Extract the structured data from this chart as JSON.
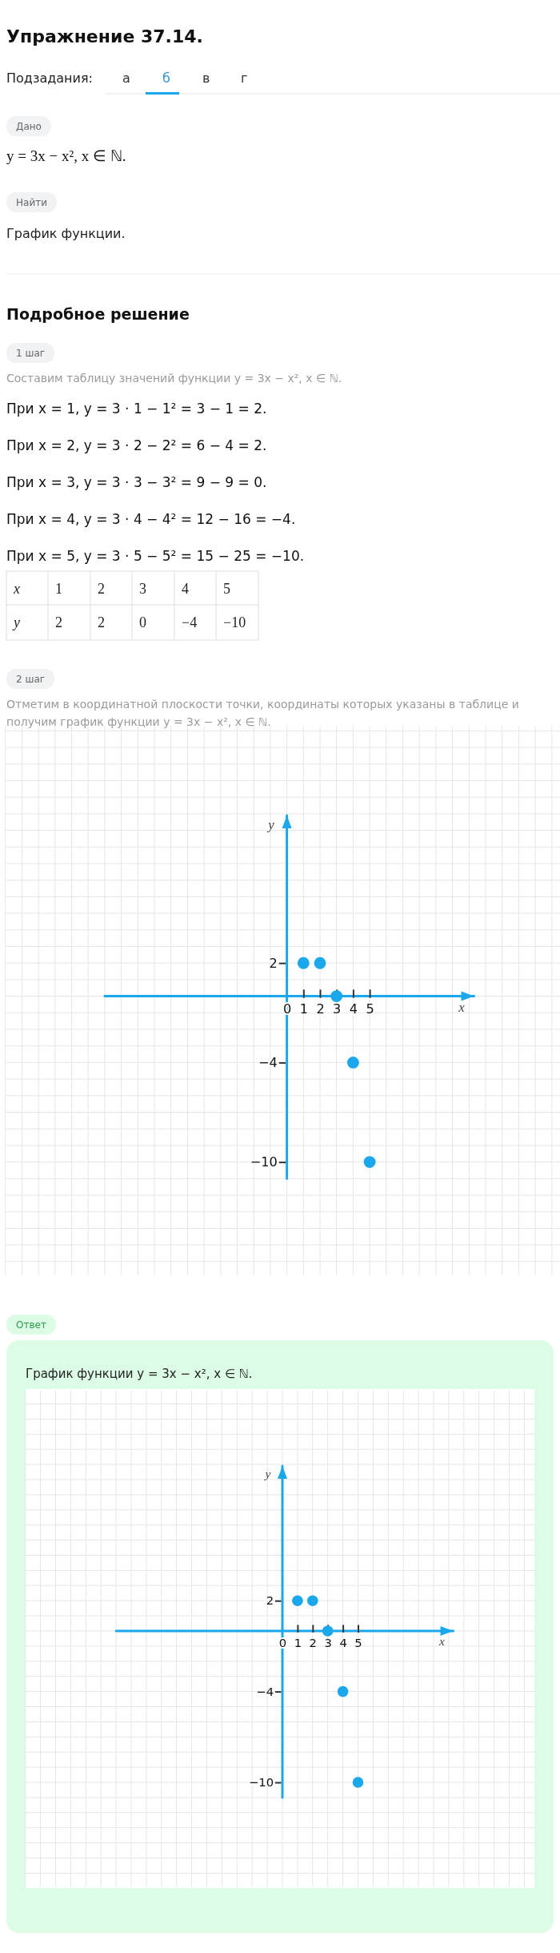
{
  "chart_data": [
    {
      "type": "scatter",
      "title": "Упражнение 37.14.",
      "xlabel": "x",
      "ylabel": "y",
      "annotations": [
        "Подзадания:",
        "а",
        "б",
        "в",
        "г",
        "Дано",
        "y = 3x − x², x ∈ ℕ.",
        "Найти",
        "График функции.",
        "Подробное решение",
        "1 шаг",
        "Составим таблицу значений функции y = 3x − x², x ∈ ℕ.",
        "При x = 1, y = 3 · 1 − 1² = 3 − 1 = 2.",
        "При x = 2, y = 3 · 2 − 2² = 6 − 4 = 2.",
        "При x = 3, y = 3 · 3 − 3² = 9 − 9 = 0.",
        "При x = 4, y = 3 · 4 − 4² = 12 − 16 = −4.",
        "При x = 5, y = 3 · 5 − 5² = 15 − 25 = −10.",
        "2 шаг",
        "Отметим в координатной плоскости точки, координаты которых указаны в таблице и получим график функции y = 3x − x², x ∈ ℕ.",
        "x",
        "1",
        "2",
        "3",
        "4",
        "5",
        "y",
        "2",
        "2",
        "0",
        "−4",
        "−10"
      ],
      "x": [
        1,
        2,
        3,
        4,
        5
      ],
      "values": [
        2,
        2,
        0,
        -4,
        -10
      ],
      "color": "#1aa7ec",
      "marker": "circle",
      "grid": true,
      "xlim": [
        -11,
        11.3
      ],
      "ylim": [
        -11,
        10.9
      ],
      "xticks": [
        0,
        1,
        2,
        3,
        4,
        5
      ],
      "yticks": [
        -10,
        -4,
        2
      ]
    },
    {
      "type": "scatter",
      "title": "График функции y = 3x − x², x ∈ ℕ.",
      "xlabel": "x",
      "ylabel": "y",
      "annotations": [
        "Ответ"
      ],
      "x": [
        1,
        2,
        3,
        4,
        5
      ],
      "values": [
        2,
        2,
        0,
        -4,
        -10
      ],
      "color": "#1aa7ec",
      "marker": "circle",
      "grid": true,
      "xlim": [
        -11,
        11.3
      ],
      "ylim": [
        -11,
        10.9
      ],
      "xticks": [
        0,
        1,
        2,
        3,
        4,
        5
      ],
      "yticks": [
        -10,
        -4,
        2
      ]
    }
  ]
}
